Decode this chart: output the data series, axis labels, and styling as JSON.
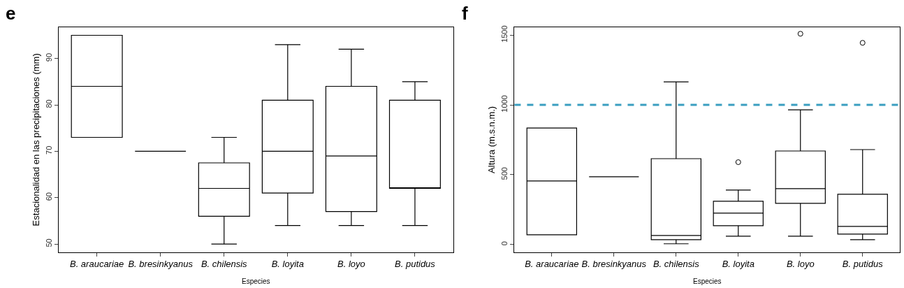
{
  "chart_data": [
    {
      "type": "box",
      "title": "e",
      "xlabel": "Especies",
      "ylabel": "Estacionalidad en las precipitaciones (mm)",
      "categories": [
        "B. araucariae",
        "B. bresinkyanus",
        "B. chilensis",
        "B. loyita",
        "B. loyo",
        "B. putidus"
      ],
      "boxes": [
        {
          "low": 73,
          "q1": 73,
          "median": 84,
          "q3": 95,
          "high": 95
        },
        {
          "low": 70,
          "q1": 70,
          "median": 70,
          "q3": 70,
          "high": 70
        },
        {
          "low": 50,
          "q1": 56,
          "median": 62,
          "q3": 67.5,
          "high": 73
        },
        {
          "low": 54,
          "q1": 61,
          "median": 70,
          "q3": 81,
          "high": 93
        },
        {
          "low": 54,
          "q1": 57,
          "median": 69,
          "q3": 84,
          "high": 92
        },
        {
          "low": 54,
          "q1": 62,
          "median": 62,
          "q3": 81,
          "high": 85
        }
      ],
      "ylim": [
        48.25,
        96.75
      ],
      "yticks": [
        50,
        60,
        70,
        80,
        90
      ]
    },
    {
      "type": "box",
      "title": "f",
      "xlabel": "Especies",
      "ylabel": "Altura (m.s.n.m.)",
      "categories": [
        "B. araucariae",
        "B. bresinkyanus",
        "B. chilensis",
        "B. loyita",
        "B. loyo",
        "B. putidus"
      ],
      "boxes": [
        {
          "low": 70,
          "q1": 70,
          "median": 455,
          "q3": 835,
          "high": 835
        },
        {
          "low": 485,
          "q1": 485,
          "median": 485,
          "q3": 485,
          "high": 485
        },
        {
          "low": 5,
          "q1": 35,
          "median": 65,
          "q3": 615,
          "high": 1165
        },
        {
          "low": 60,
          "q1": 135,
          "median": 225,
          "q3": 310,
          "high": 390,
          "outliers": [
            590
          ]
        },
        {
          "low": 60,
          "q1": 295,
          "median": 400,
          "q3": 670,
          "high": 965,
          "outliers": [
            1510
          ]
        },
        {
          "low": 35,
          "q1": 75,
          "median": 130,
          "q3": 360,
          "high": 680,
          "outliers": [
            1445
          ]
        }
      ],
      "ref_lines": [
        {
          "axis": "y",
          "value": 1000,
          "label": null,
          "color": "#3a9ec0",
          "line_style": "dashed"
        }
      ],
      "ylim": [
        -55,
        1557
      ],
      "yticks": [
        0,
        500,
        1000,
        1500
      ]
    }
  ]
}
